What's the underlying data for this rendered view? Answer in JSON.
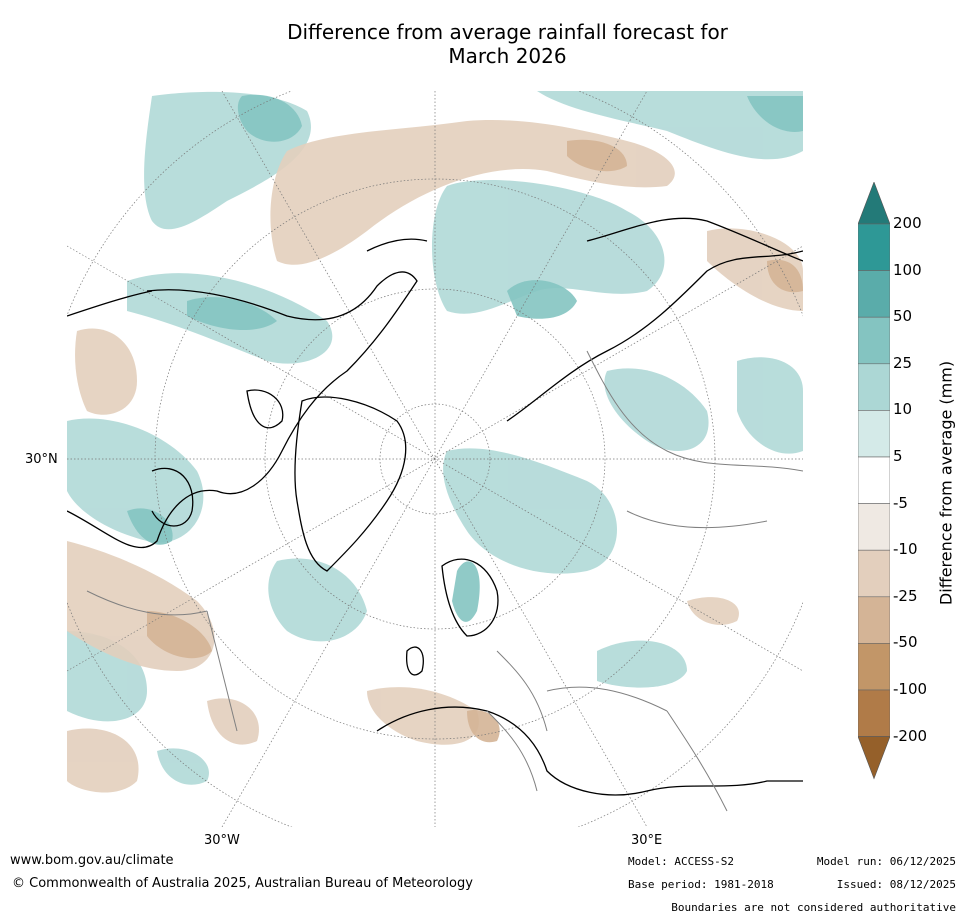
{
  "title_line1": "Difference from average rainfall forecast for",
  "title_line2": "March 2026",
  "axes": {
    "lat_label": "30°N",
    "lon_label_left": "30°W",
    "lon_label_right": "30°E"
  },
  "colorbar": {
    "title": "Difference from average (mm)",
    "ticks": [
      "200",
      "100",
      "50",
      "25",
      "10",
      "5",
      "-5",
      "-10",
      "-25",
      "-50",
      "-100",
      "-200"
    ],
    "colors": [
      "#237a78",
      "#2e9896",
      "#5aacaa",
      "#84c4c1",
      "#acd7d5",
      "#d4eae8",
      "#ffffff",
      "#efe9e3",
      "#e3cfbd",
      "#d4b496",
      "#c29668",
      "#b07b48",
      "#95602a"
    ]
  },
  "footer": {
    "website": "www.bom.gov.au/climate",
    "copyright": "© Commonwealth of Australia 2025, Australian Bureau of Meteorology",
    "model": "Model: ACCESS-S2",
    "base_period": "Base period: 1981-2018",
    "model_run": "Model run: 06/12/2025",
    "issued": "Issued: 08/12/2025",
    "disclaimer": "Boundaries are not considered authoritative"
  }
}
